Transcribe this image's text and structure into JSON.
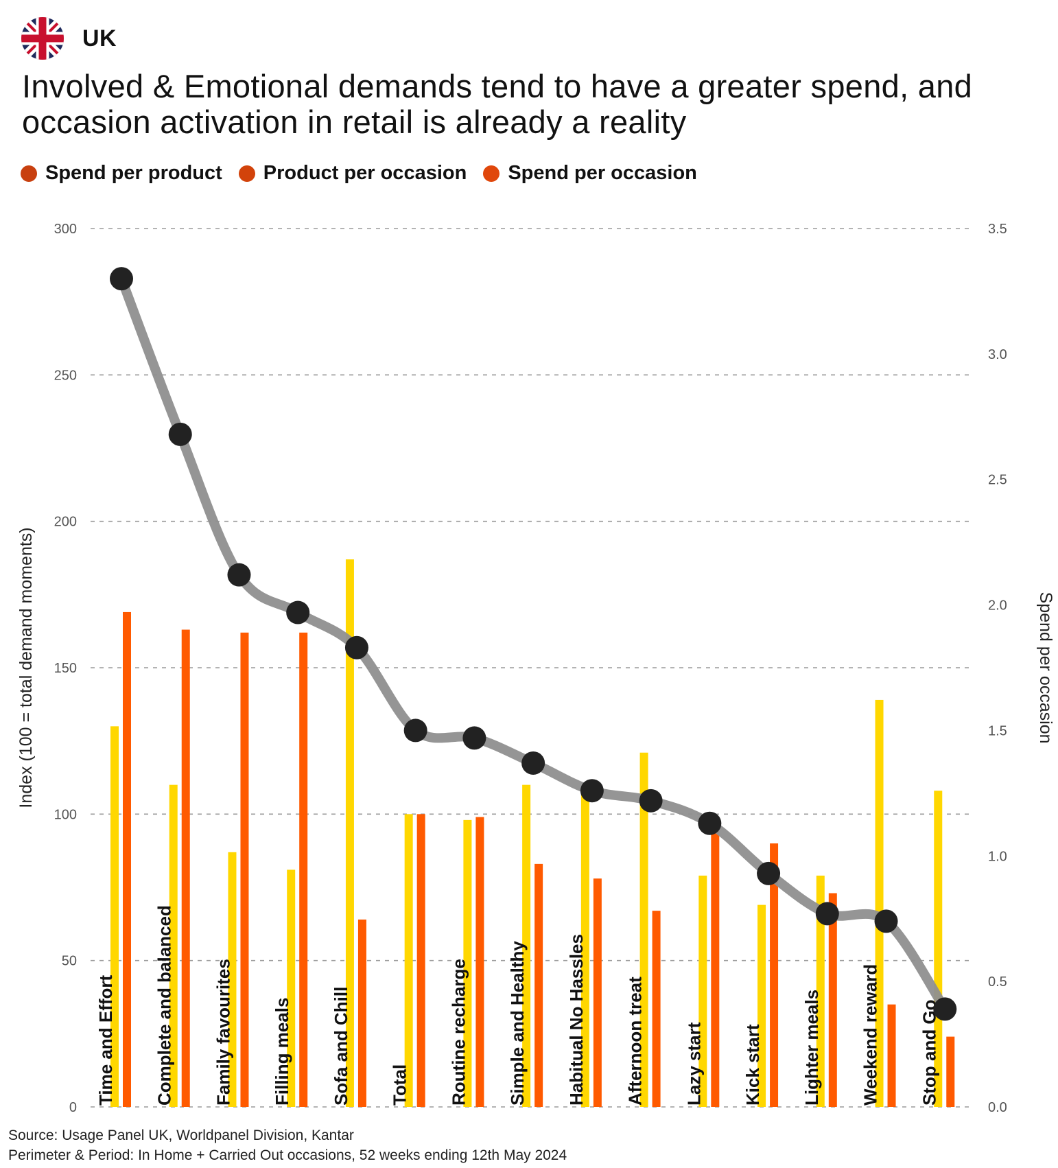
{
  "header": {
    "country": "UK",
    "title": "Involved & Emotional demands tend to have a greater spend, and occasion activation in retail is already a reality"
  },
  "legend": [
    {
      "label": "Spend per product",
      "color": "#C8400F"
    },
    {
      "label": "Product per occasion",
      "color": "#D2430B"
    },
    {
      "label": "Spend per occasion",
      "color": "#E0470B"
    }
  ],
  "colors": {
    "spend_per_product_bar": "#FFD700",
    "product_per_occasion_bar": "#FF5A00",
    "line": "#8F8F8F",
    "marker": "#222222",
    "grid": "#9A9A9A",
    "flag_blue": "#1F2A5C",
    "flag_red": "#C8102E"
  },
  "chart_data": {
    "type": "bar",
    "categories": [
      "Time and Effort",
      "Complete and balanced",
      "Family favourites",
      "Filling meals",
      "Sofa and Chill",
      "Total",
      "Routine recharge",
      "Simple and Healthy",
      "Habitual No Hassles",
      "Afternoon treat",
      "Lazy start",
      "Kick start",
      "Lighter meals",
      "Weekend reward",
      "Stop and Go"
    ],
    "series": [
      {
        "name": "Spend per product",
        "axis": "left",
        "type": "bar",
        "values": [
          130,
          110,
          87,
          81,
          187,
          100,
          98,
          110,
          107,
          121,
          79,
          69,
          79,
          139,
          108
        ]
      },
      {
        "name": "Product per occasion",
        "axis": "left",
        "type": "bar",
        "values": [
          169,
          163,
          162,
          162,
          64,
          100,
          99,
          83,
          78,
          67,
          96,
          90,
          73,
          35,
          24
        ]
      },
      {
        "name": "Spend per occasion",
        "axis": "right",
        "type": "line",
        "values": [
          3.3,
          2.68,
          2.12,
          1.97,
          1.83,
          1.5,
          1.47,
          1.37,
          1.26,
          1.22,
          1.13,
          0.93,
          0.77,
          0.74,
          0.39
        ]
      }
    ],
    "ylabel": "Index (100 = total demand moments)",
    "y2label": "Spend per occasion",
    "ylim": [
      0,
      300
    ],
    "y2lim": [
      0,
      3.5
    ],
    "yticks": [
      "0",
      "50",
      "100",
      "150",
      "200",
      "250",
      "300"
    ],
    "y2ticks": [
      "0.0",
      "0.5",
      "1.0",
      "1.5",
      "2.0",
      "2.5",
      "3.0",
      "3.5"
    ],
    "grid": true,
    "legend_position": "top-left"
  },
  "footer": {
    "source": "Source: Usage Panel UK, Worldpanel Division, Kantar",
    "period": "Perimeter & Period: In Home + Carried Out occasions, 52 weeks ending 12th May 2024"
  }
}
